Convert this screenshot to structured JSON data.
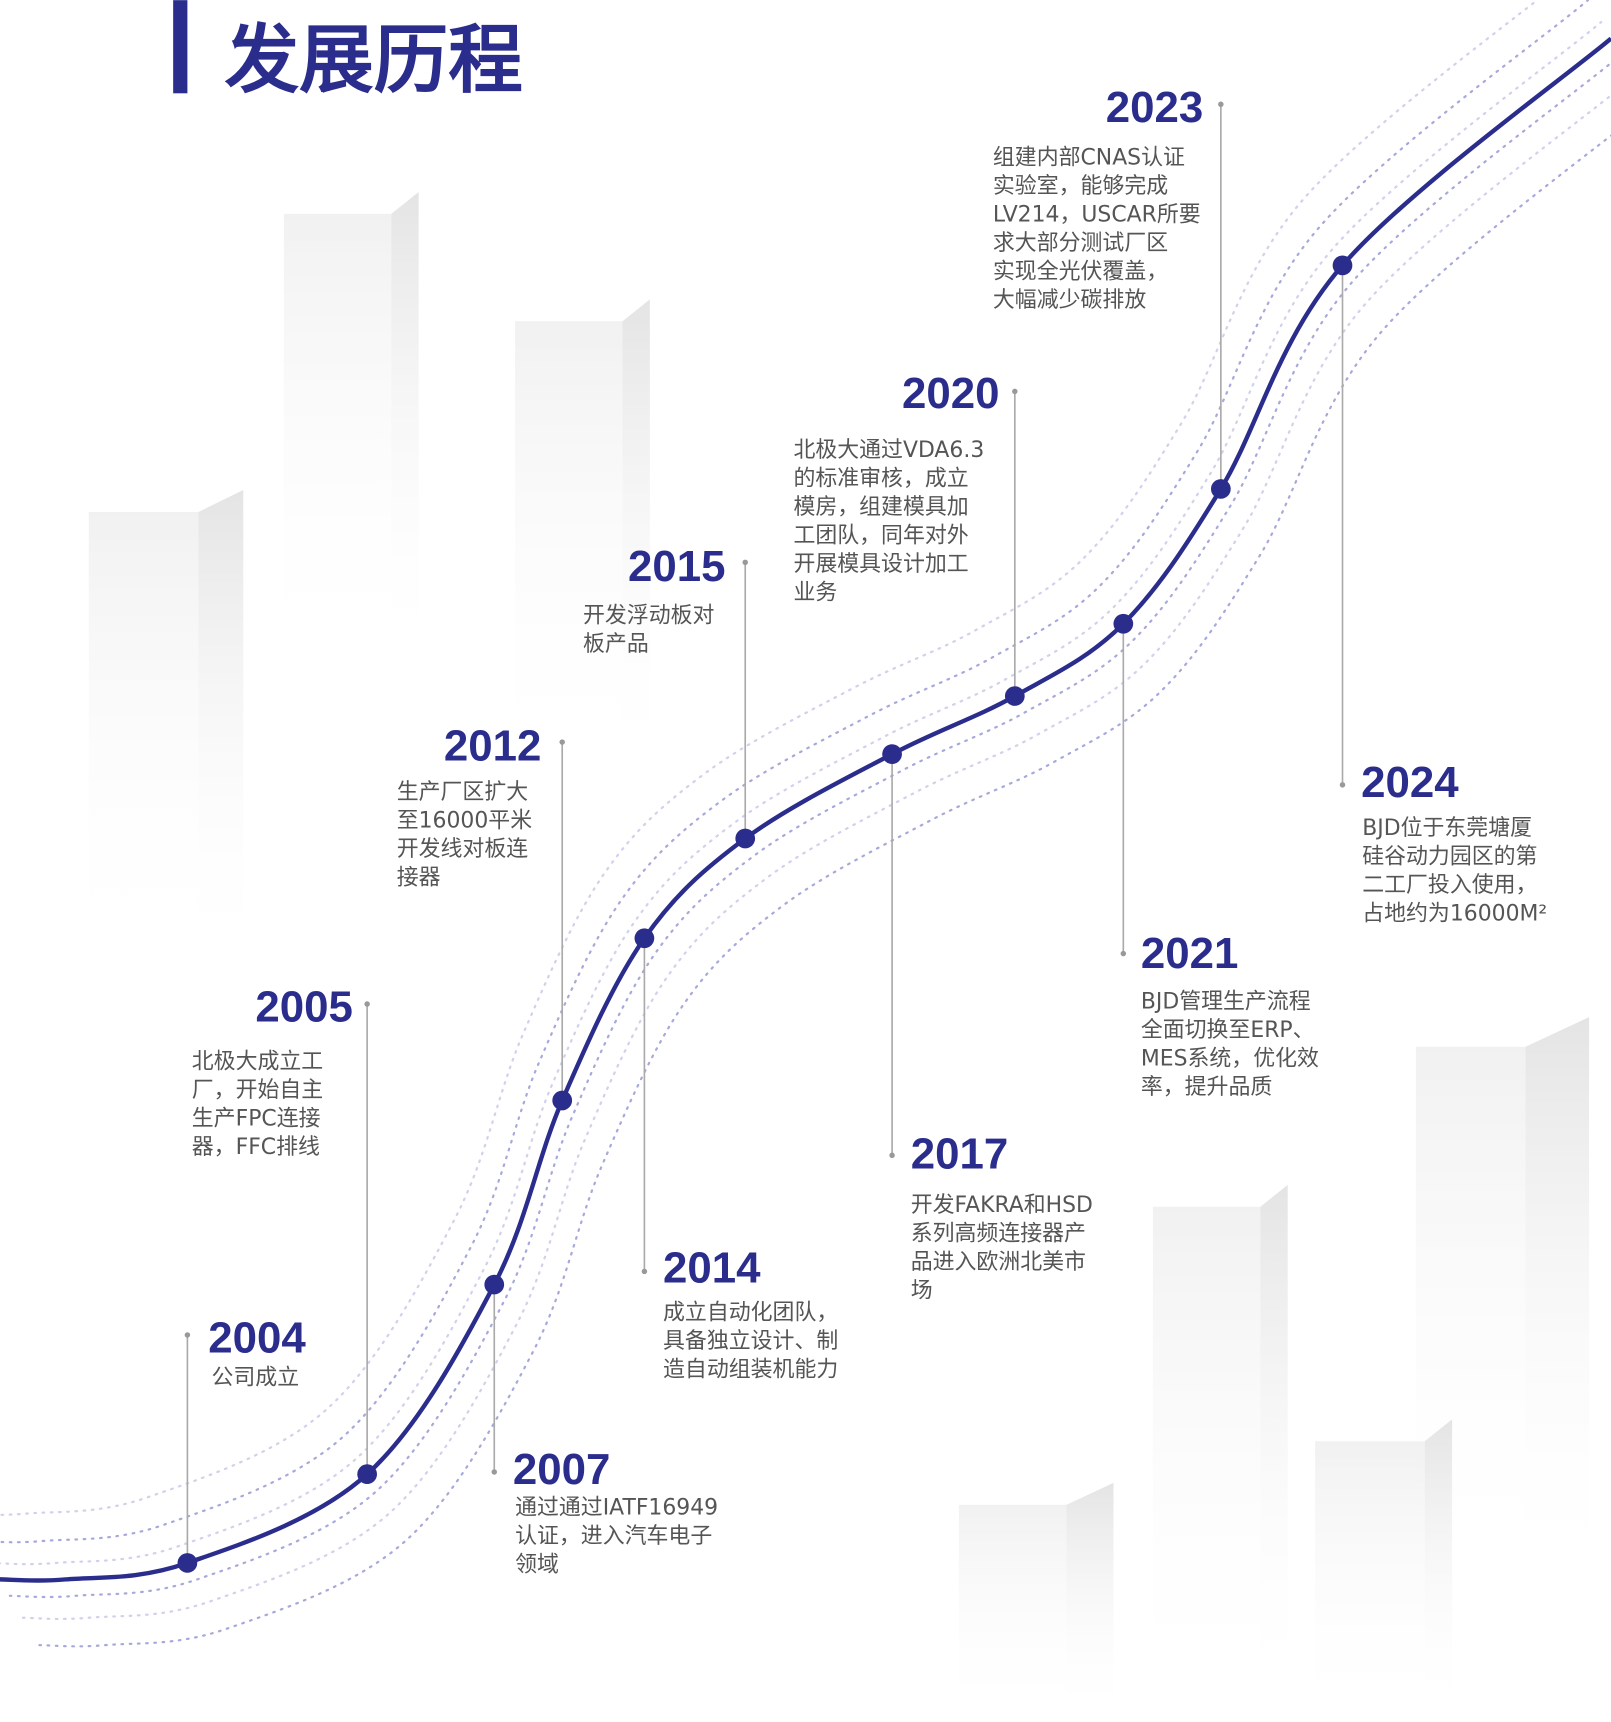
{
  "title": "发展历程",
  "milestones": [
    {
      "year": "2004",
      "lines": [
        "公司成立"
      ]
    },
    {
      "year": "2005",
      "lines": [
        "北极大成立工",
        "厂，开始自主",
        "生产FPC连接",
        "器，FFC排线"
      ]
    },
    {
      "year": "2007",
      "lines": [
        "通过通过IATF16949",
        "认证，进入汽车电子",
        "领域"
      ]
    },
    {
      "year": "2012",
      "lines": [
        "生产厂区扩大",
        "至16000平米",
        "开发线对板连",
        "接器"
      ]
    },
    {
      "year": "2014",
      "lines": [
        "成立自动化团队，",
        "具备独立设计、制",
        "造自动组装机能力"
      ]
    },
    {
      "year": "2015",
      "lines": [
        "开发浮动板对",
        "板产品"
      ]
    },
    {
      "year": "2017",
      "lines": [
        "开发FAKRA和HSD",
        "系列高频连接器产",
        "品进入欧洲北美市",
        "场"
      ]
    },
    {
      "year": "2020",
      "lines": [
        "北极大通过VDA6.3",
        "的标准审核，成立",
        "模房，组建模具加",
        "工团队，同年对外",
        "开展模具设计加工",
        "业务"
      ]
    },
    {
      "year": "2021",
      "lines": [
        "BJD管理生产流程",
        "全面切换至ERP、",
        "MES系统，优化效",
        "率，提升品质"
      ]
    },
    {
      "year": "2023",
      "lines": [
        "组建内部CNAS认证",
        "实验室，能够完成",
        "LV214，USCAR所要",
        "求大部分测试厂区",
        "实现全光伏覆盖，",
        "大幅减少碳排放"
      ]
    },
    {
      "year": "2024",
      "lines": [
        "BJD位于东莞塘厦",
        "硅谷动力园区的第",
        "二工厂投入使用，",
        "占地约为16000M²"
      ]
    }
  ]
}
